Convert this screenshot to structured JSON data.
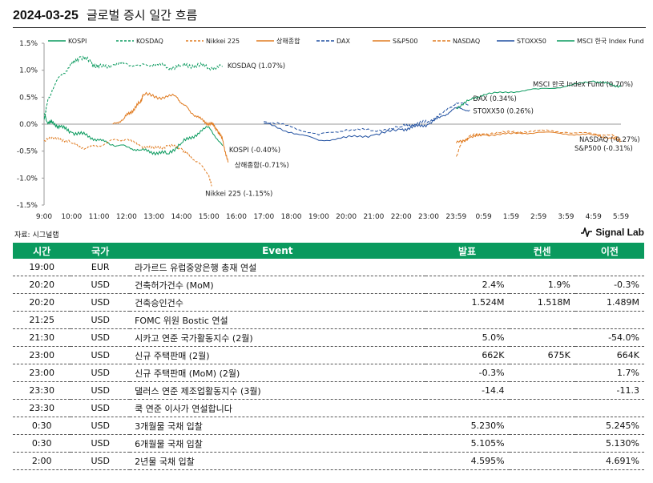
{
  "header": {
    "date": "2024-03-25",
    "title": "글로벌 증시 일간 흐름"
  },
  "chart_data": {
    "type": "line",
    "ylim": [
      -1.5,
      1.5
    ],
    "yticks": [
      1.5,
      1.0,
      0.5,
      0.0,
      -0.5,
      -1.0,
      -1.5
    ],
    "ytick_labels": [
      "1.5%",
      "1.0%",
      "0.5%",
      "0.0%",
      "-0.5%",
      "-1.0%",
      "-1.5%"
    ],
    "xticks": [
      "9:00",
      "10:00",
      "11:00",
      "12:00",
      "13:00",
      "14:00",
      "15:00",
      "16:00",
      "17:00",
      "18:00",
      "19:00",
      "20:00",
      "21:00",
      "22:00",
      "23:00",
      "23:59",
      "0:59",
      "1:59",
      "2:59",
      "3:59",
      "4:59",
      "5:59"
    ],
    "legend_position": "top",
    "series": [
      {
        "name": "KOSPI",
        "color": "#0a9a5e",
        "dash": "",
        "label": "KOSPI (-0.40%)",
        "x": [
          0,
          0.1,
          0.3,
          0.6,
          1.0,
          1.5,
          2.0,
          2.5,
          3.0,
          3.5,
          4.0,
          4.5,
          5.0,
          5.5,
          6.0,
          6.5
        ],
        "y": [
          0.2,
          0.05,
          0.02,
          -0.05,
          -0.15,
          -0.2,
          -0.3,
          -0.38,
          -0.42,
          -0.48,
          -0.52,
          -0.55,
          -0.35,
          -0.2,
          -0.05,
          -0.4
        ]
      },
      {
        "name": "KOSDAQ",
        "color": "#0a9a5e",
        "dash": "3,2",
        "label": "KOSDAQ (1.07%)",
        "x": [
          0,
          0.1,
          0.3,
          0.6,
          1.0,
          1.3,
          1.7,
          2.0,
          2.5,
          3.0,
          3.5,
          4.0,
          4.5,
          5.0,
          5.5,
          6.0,
          6.5
        ],
        "y": [
          0.1,
          0.35,
          0.65,
          0.9,
          1.1,
          1.25,
          1.15,
          1.05,
          1.1,
          1.12,
          1.08,
          1.12,
          1.05,
          1.08,
          1.1,
          1.05,
          1.07
        ]
      },
      {
        "name": "Nikkei 225",
        "color": "#e07b20",
        "dash": "3,2",
        "label": "Nikkei 225 (-1.15%)",
        "x": [
          0,
          0.5,
          1.0,
          1.5,
          2.0,
          2.5,
          3.0,
          3.5,
          4.0,
          4.5,
          5.0,
          5.3,
          5.6,
          6.0,
          6.1
        ],
        "y": [
          -0.3,
          -0.25,
          -0.35,
          -0.45,
          -0.4,
          -0.3,
          -0.28,
          -0.4,
          -0.45,
          -0.4,
          -0.45,
          -0.6,
          -0.7,
          -0.95,
          -1.15
        ]
      },
      {
        "name": "상해종합",
        "color": "#e07b20",
        "dash": "",
        "label": "상해종합(-0.71%)",
        "x": [
          2.5,
          2.9,
          3.2,
          3.5,
          3.6,
          4.2,
          4.8,
          5.1,
          5.4,
          5.8,
          6.1,
          6.3,
          6.5,
          6.7
        ],
        "y": [
          0.0,
          0.1,
          0.25,
          0.4,
          0.55,
          0.5,
          0.52,
          0.35,
          0.2,
          0.05,
          0.0,
          -0.1,
          -0.3,
          -0.71
        ]
      },
      {
        "name": "DAX",
        "color": "#1f4fa0",
        "dash": "4,2",
        "label": "DAX (0.34%)",
        "x": [
          8.0,
          9.0,
          10.0,
          11.0,
          12.0,
          13.0,
          13.5,
          14.0,
          14.5,
          15.0,
          15.5
        ],
        "y": [
          0.05,
          -0.05,
          -0.2,
          -0.1,
          -0.12,
          -0.05,
          0.0,
          0.05,
          0.2,
          0.4,
          0.34
        ]
      },
      {
        "name": "S&P500",
        "color": "#e07b20",
        "dash": "",
        "label": "S&P500 (-0.31%)",
        "x": [
          15.0,
          15.5,
          16.0,
          17.0,
          18.0,
          19.0,
          20.0,
          20.6,
          21.0
        ],
        "y": [
          -0.35,
          -0.25,
          -0.2,
          -0.18,
          -0.15,
          -0.18,
          -0.2,
          -0.25,
          -0.31
        ]
      },
      {
        "name": "NASDAQ",
        "color": "#e07b20",
        "dash": "4,2",
        "label": "NASDAQ (-0.27%)",
        "x": [
          15.0,
          15.2,
          15.5,
          16.0,
          17.0,
          18.0,
          19.0,
          20.0,
          20.6,
          21.0
        ],
        "y": [
          -0.6,
          -0.35,
          -0.22,
          -0.18,
          -0.15,
          -0.12,
          -0.15,
          -0.18,
          -0.2,
          -0.27
        ]
      },
      {
        "name": "STOXX50",
        "color": "#1f4fa0",
        "dash": "",
        "label": "STOXX50 (0.26%)",
        "x": [
          8.0,
          9.0,
          10.0,
          11.0,
          12.0,
          13.0,
          13.5,
          14.0,
          14.5,
          15.0,
          15.5
        ],
        "y": [
          0.02,
          -0.15,
          -0.3,
          -0.25,
          -0.2,
          -0.1,
          -0.05,
          0.0,
          0.15,
          0.3,
          0.26
        ]
      },
      {
        "name": "MSCI 한국 Index Fund",
        "color": "#0a9a5e",
        "dash": "",
        "label": "MSCI 한국 Index Fund (0.70%)",
        "x": [
          15.0,
          15.5,
          16.0,
          17.0,
          18.0,
          19.0,
          20.0,
          20.5,
          21.0
        ],
        "y": [
          0.3,
          0.45,
          0.55,
          0.6,
          0.65,
          0.7,
          0.8,
          0.75,
          0.7
        ]
      }
    ]
  },
  "source": "자료: 시그널랩",
  "brand": "Signal Lab",
  "table": {
    "headers": [
      "시간",
      "국가",
      "Event",
      "발표",
      "컨센",
      "이전"
    ],
    "rows": [
      [
        "19:00",
        "EUR",
        "라가르드 유럽중앙은행 총재 연설",
        "",
        "",
        ""
      ],
      [
        "20:20",
        "USD",
        "건축허가건수 (MoM)",
        "2.4%",
        "1.9%",
        "-0.3%"
      ],
      [
        "20:20",
        "USD",
        "건축승인건수",
        "1.524M",
        "1.518M",
        "1.489M"
      ],
      [
        "21:25",
        "USD",
        "FOMC 위원 Bostic 연설",
        "",
        "",
        ""
      ],
      [
        "21:30",
        "USD",
        "시카고 연준 국가활동지수 (2월)",
        "5.0%",
        "",
        "-54.0%"
      ],
      [
        "23:00",
        "USD",
        "신규 주택판매 (2월)",
        "662K",
        "675K",
        "664K"
      ],
      [
        "23:00",
        "USD",
        "신규 주택판매 (MoM) (2월)",
        "-0.3%",
        "",
        "1.7%"
      ],
      [
        "23:30",
        "USD",
        "댈러스 연준 제조업활동지수 (3월)",
        "-14.4",
        "",
        "-11.3"
      ],
      [
        "23:30",
        "USD",
        "쿡 연준 이사가 연설합니다",
        "",
        "",
        ""
      ],
      [
        "0:30",
        "USD",
        "3개월물 국채 입찰",
        "5.230%",
        "",
        "5.245%"
      ],
      [
        "0:30",
        "USD",
        "6개월물 국채 입찰",
        "5.105%",
        "",
        "5.130%"
      ],
      [
        "2:00",
        "USD",
        "2년물 국채 입찰",
        "4.595%",
        "",
        "4.691%"
      ]
    ]
  }
}
